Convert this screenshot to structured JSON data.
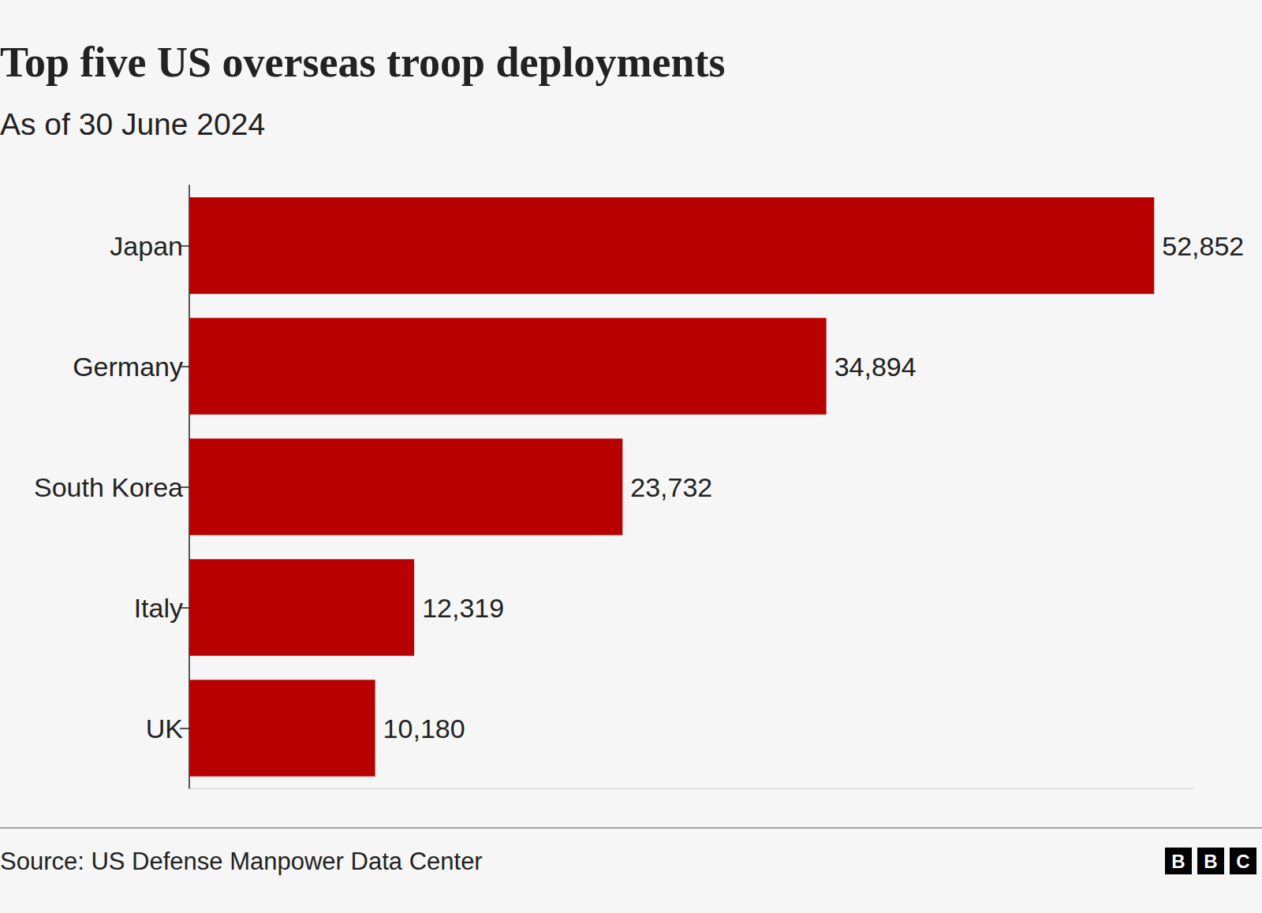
{
  "chart_data": {
    "type": "bar",
    "orientation": "horizontal",
    "title": "Top five US overseas troop deployments",
    "subtitle": "As of 30 June 2024",
    "categories": [
      "Japan",
      "Germany",
      "South Korea",
      "Italy",
      "UK"
    ],
    "values": [
      52852,
      34894,
      23732,
      12319,
      10180
    ],
    "value_labels": [
      "52,852",
      "34,894",
      "23,732",
      "12,319",
      "10,180"
    ],
    "data_labels": true,
    "color": "#b80000",
    "xlim": [
      0,
      55000
    ],
    "xticks": [],
    "tick_labels": "y",
    "grid": false,
    "source": "Source: US Defense Manpower Data Center",
    "logo": "BBC"
  }
}
